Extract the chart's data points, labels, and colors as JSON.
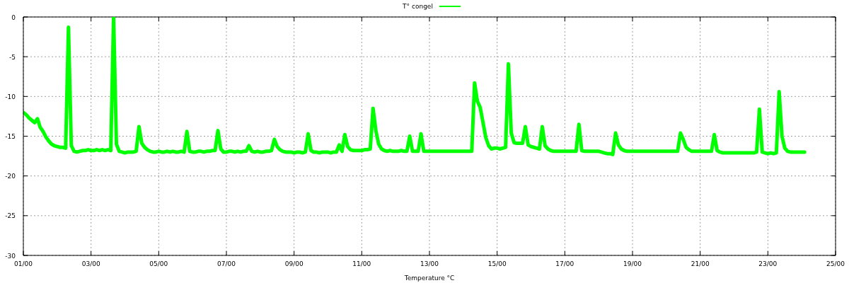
{
  "chart_data": {
    "type": "line",
    "xlabel": "Temperature °C",
    "categories": [
      "01/00",
      null,
      null,
      null,
      null,
      null,
      null,
      null,
      null,
      null,
      null,
      null,
      null,
      null,
      null,
      null,
      null,
      null,
      null,
      null,
      null,
      null,
      null,
      null,
      "03/00",
      null,
      null,
      null,
      null,
      null,
      null,
      null,
      null,
      null,
      null,
      null,
      null,
      null,
      null,
      null,
      null,
      null,
      null,
      null,
      null,
      null,
      null,
      null,
      "05/00",
      null,
      null,
      null,
      null,
      null,
      null,
      null,
      null,
      null,
      null,
      null,
      null,
      null,
      null,
      null,
      null,
      null,
      null,
      null,
      null,
      null,
      null,
      null,
      "07/00",
      null,
      null,
      null,
      null,
      null,
      null,
      null,
      null,
      null,
      null,
      null,
      null,
      null,
      null,
      null,
      null,
      null,
      null,
      null,
      null,
      null,
      null,
      null,
      "09/00",
      null,
      null,
      null,
      null,
      null,
      null,
      null,
      null,
      null,
      null,
      null,
      null,
      null,
      null,
      null,
      null,
      null,
      null,
      null,
      null,
      null,
      null,
      null,
      "11/00",
      null,
      null,
      null,
      null,
      null,
      null,
      null,
      null,
      null,
      null,
      null,
      null,
      null,
      null,
      null,
      null,
      null,
      null,
      null,
      null,
      null,
      null,
      null,
      "13/00",
      null,
      null,
      null,
      null,
      null,
      null,
      null,
      null,
      null,
      null,
      null,
      null,
      null,
      null,
      null,
      null,
      null,
      null,
      null,
      null,
      null,
      null,
      null,
      "15/00",
      null,
      null,
      null,
      null,
      null,
      null,
      null,
      null,
      null,
      null,
      null,
      null,
      null,
      null,
      null,
      null,
      null,
      null,
      null,
      null,
      null,
      null,
      null,
      "17/00",
      null,
      null,
      null,
      null,
      null,
      null,
      null,
      null,
      null,
      null,
      null,
      null,
      null,
      null,
      null,
      null,
      null,
      null,
      null,
      null,
      null,
      null,
      null,
      "19/00",
      null,
      null,
      null,
      null,
      null,
      null,
      null,
      null,
      null,
      null,
      null,
      null,
      null,
      null,
      null,
      null,
      null,
      null,
      null,
      null,
      null,
      null,
      null,
      "21/00",
      null,
      null,
      null,
      null,
      null,
      null,
      null,
      null,
      null,
      null,
      null,
      null,
      null,
      null,
      null,
      null,
      null,
      null,
      null,
      null,
      null,
      null,
      null,
      "23/00",
      null,
      null,
      null,
      null,
      null,
      null,
      null,
      null,
      null,
      null,
      null,
      null,
      null,
      null,
      null,
      null,
      null,
      null,
      null,
      null,
      null,
      null,
      null,
      "25/00"
    ],
    "series": [
      {
        "name": "T° congel",
        "color": "#00ff00",
        "values": [
          -12.0,
          -12.3,
          -12.7,
          -13.0,
          -13.3,
          -12.8,
          -13.9,
          -14.4,
          -15.1,
          -15.6,
          -16.0,
          -16.2,
          -16.3,
          -16.4,
          -16.4,
          -16.5,
          -1.3,
          -16.2,
          -16.9,
          -17.0,
          -16.9,
          -16.8,
          -16.8,
          -16.7,
          -16.8,
          -16.8,
          -16.7,
          -16.8,
          -16.7,
          -16.8,
          -16.7,
          -16.8,
          0,
          -16.0,
          -16.9,
          -17.0,
          -17.1,
          -17.0,
          -17.0,
          -17.0,
          -16.9,
          -13.8,
          -15.9,
          -16.4,
          -16.7,
          -16.9,
          -17.0,
          -17.0,
          -16.9,
          -17.0,
          -17.0,
          -16.9,
          -17.0,
          -16.9,
          -17.0,
          -17.0,
          -16.9,
          -17.0,
          -14.4,
          -16.9,
          -17.0,
          -17.0,
          -16.9,
          -16.9,
          -17.0,
          -16.9,
          -16.9,
          -16.8,
          -16.8,
          -14.3,
          -16.6,
          -17.0,
          -17.0,
          -16.9,
          -16.9,
          -17.0,
          -16.9,
          -17.0,
          -16.9,
          -16.9,
          -16.2,
          -16.9,
          -17.0,
          -16.9,
          -17.0,
          -17.0,
          -16.9,
          -16.9,
          -16.8,
          -15.4,
          -16.3,
          -16.7,
          -16.9,
          -17.0,
          -17.0,
          -17.0,
          -17.1,
          -17.0,
          -17.0,
          -17.1,
          -17.0,
          -14.7,
          -16.8,
          -17.0,
          -17.0,
          -17.1,
          -17.0,
          -17.0,
          -17.0,
          -17.1,
          -17.0,
          -17.0,
          -16.1,
          -16.9,
          -14.8,
          -16.3,
          -16.7,
          -16.8,
          -16.8,
          -16.8,
          -16.8,
          -16.7,
          -16.7,
          -16.6,
          -11.5,
          -14.3,
          -16.0,
          -16.6,
          -16.8,
          -16.9,
          -16.8,
          -16.9,
          -16.9,
          -16.9,
          -16.8,
          -16.9,
          -16.9,
          -15.0,
          -16.9,
          -16.9,
          -16.9,
          -14.7,
          -16.9,
          -16.9,
          -16.9,
          -16.9,
          -16.9,
          -16.9,
          -16.9,
          -16.9,
          -16.9,
          -16.9,
          -16.9,
          -16.9,
          -16.9,
          -16.9,
          -16.9,
          -16.9,
          -16.9,
          -16.9,
          -8.3,
          -10.6,
          -11.4,
          -13.3,
          -15.2,
          -16.2,
          -16.6,
          -16.5,
          -16.5,
          -16.6,
          -16.5,
          -16.4,
          -5.9,
          -14.6,
          -15.8,
          -15.9,
          -15.9,
          -15.9,
          -13.8,
          -16.1,
          -16.3,
          -16.4,
          -16.5,
          -16.6,
          -13.8,
          -16.2,
          -16.6,
          -16.8,
          -16.9,
          -16.9,
          -16.9,
          -16.9,
          -16.9,
          -16.9,
          -16.9,
          -16.9,
          -16.9,
          -13.5,
          -16.8,
          -16.9,
          -16.9,
          -16.9,
          -16.9,
          -16.9,
          -16.9,
          -17.0,
          -17.1,
          -17.2,
          -17.2,
          -17.3,
          -14.6,
          -16.1,
          -16.6,
          -16.8,
          -16.9,
          -16.9,
          -16.9,
          -16.9,
          -16.9,
          -16.9,
          -16.9,
          -16.9,
          -16.9,
          -16.9,
          -16.9,
          -16.9,
          -16.9,
          -16.9,
          -16.9,
          -16.9,
          -16.9,
          -16.9,
          -16.9,
          -14.6,
          -15.4,
          -16.4,
          -16.7,
          -16.9,
          -16.9,
          -16.9,
          -16.9,
          -16.9,
          -16.9,
          -16.9,
          -16.9,
          -14.8,
          -16.8,
          -17.0,
          -17.1,
          -17.1,
          -17.1,
          -17.1,
          -17.1,
          -17.1,
          -17.1,
          -17.1,
          -17.1,
          -17.1,
          -17.1,
          -17.1,
          -17.0,
          -11.6,
          -17.0,
          -17.1,
          -17.2,
          -17.1,
          -17.2,
          -17.1,
          -9.4,
          -15.0,
          -16.5,
          -16.9,
          -17.0,
          -17.0,
          -17.0,
          -17.0,
          -17.0,
          -17.0,
          null,
          null,
          null,
          null,
          null,
          null,
          null,
          null,
          null,
          null,
          null
        ]
      }
    ],
    "ylim": [
      -30,
      0
    ],
    "yticks": [
      -30,
      -25,
      -20,
      -15,
      -10,
      -5,
      0
    ],
    "grid": true,
    "legend": "top",
    "marker": "none",
    "line_style": "solid"
  }
}
